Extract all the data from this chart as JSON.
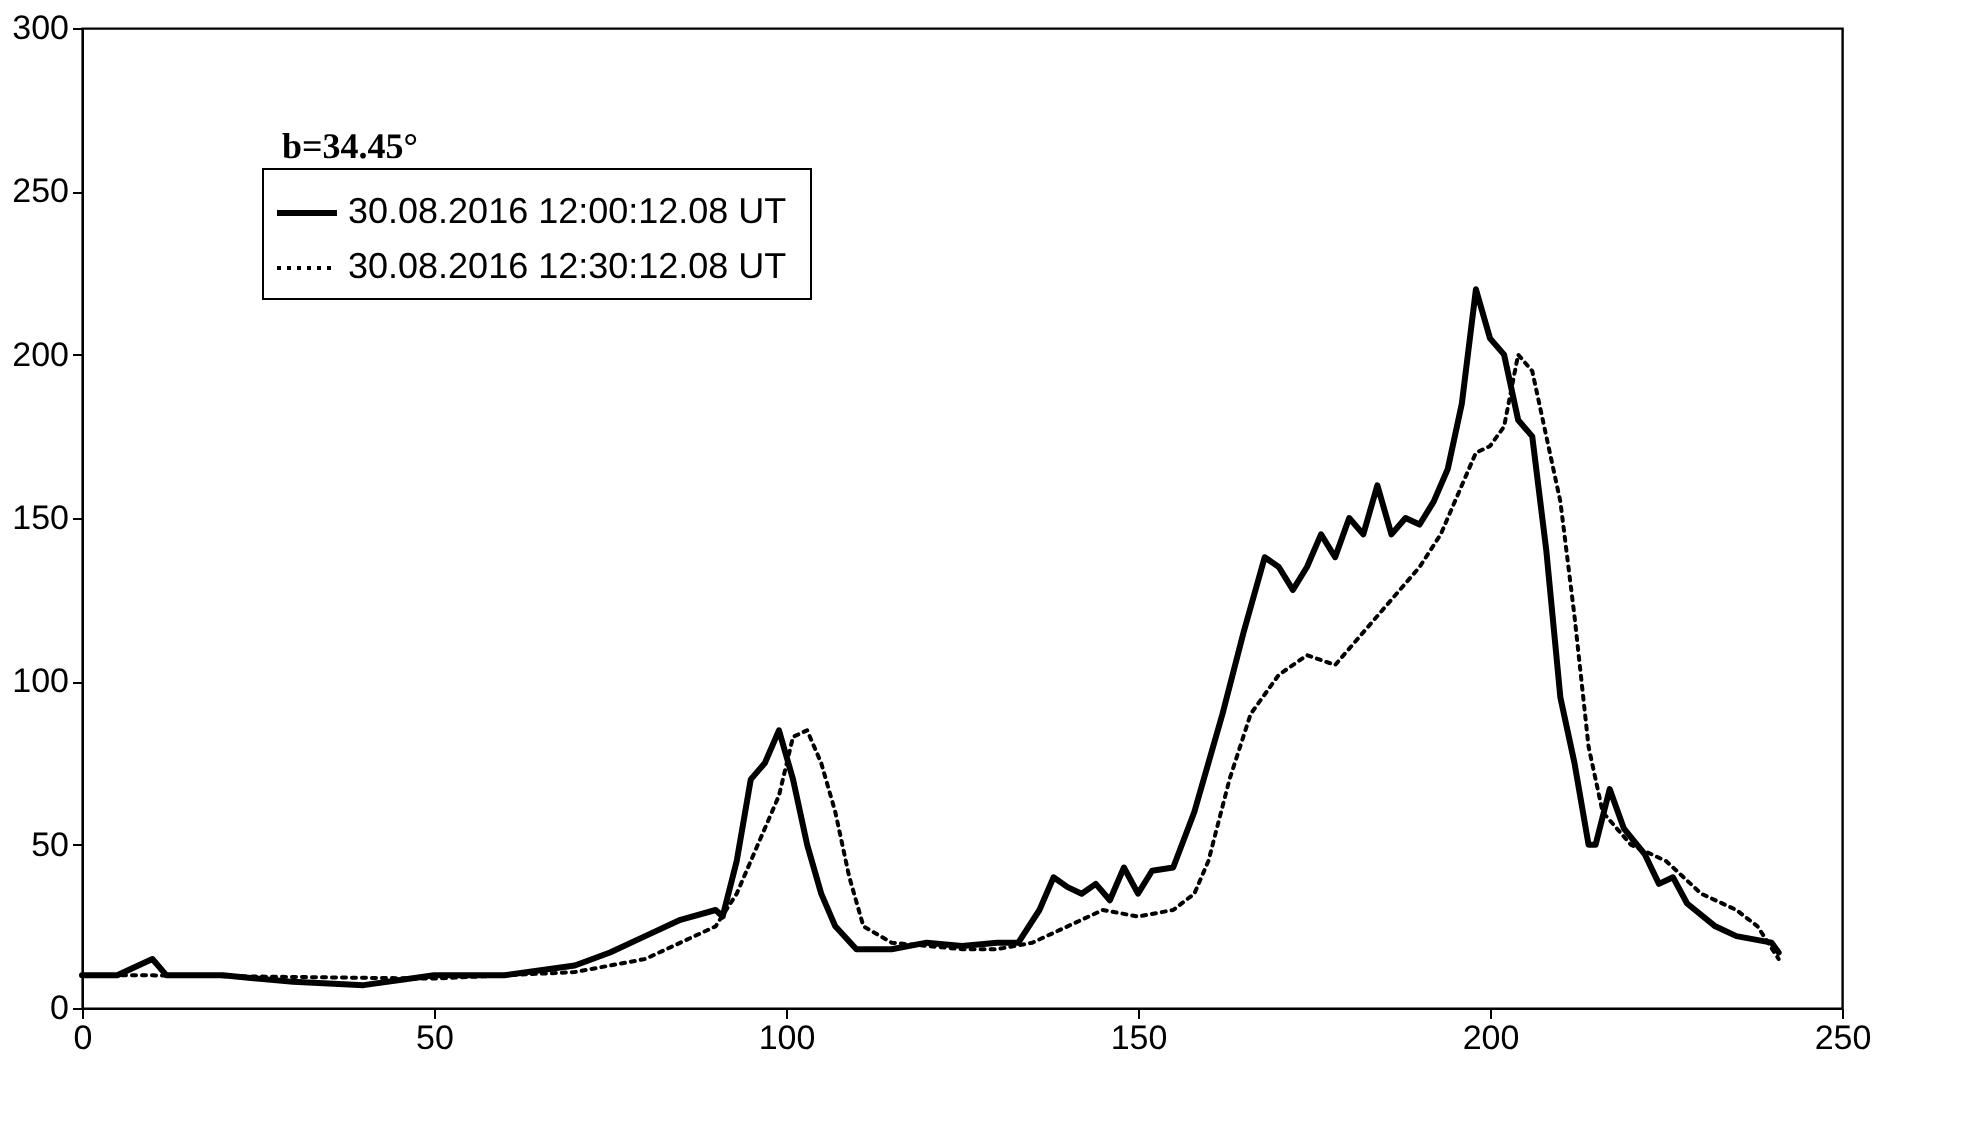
{
  "chart_data": {
    "type": "line",
    "xlim": [
      0,
      250
    ],
    "ylim": [
      0,
      300
    ],
    "xticks": [
      0,
      50,
      100,
      150,
      200,
      250
    ],
    "yticks": [
      0,
      50,
      100,
      150,
      200,
      250,
      300
    ],
    "grid": false,
    "legend": "top left",
    "annotations": [
      "b=34.45°"
    ],
    "series": [
      {
        "name": "30.08.2016  12:00:12.08 UT",
        "color": "#000000",
        "line_style": "solid",
        "x": [
          0,
          5,
          10,
          12,
          20,
          30,
          40,
          50,
          60,
          70,
          75,
          80,
          85,
          90,
          91,
          93,
          95,
          97,
          99,
          101,
          103,
          105,
          107,
          110,
          115,
          120,
          125,
          130,
          133,
          136,
          138,
          140,
          142,
          144,
          146,
          148,
          150,
          152,
          155,
          158,
          162,
          165,
          168,
          170,
          172,
          174,
          176,
          178,
          180,
          182,
          184,
          186,
          188,
          190,
          192,
          194,
          196,
          198,
          200,
          202,
          204,
          206,
          208,
          210,
          212,
          214,
          215,
          217,
          219,
          222,
          224,
          226,
          228,
          232,
          235,
          240,
          241
        ],
        "values": [
          10,
          10,
          15,
          10,
          10,
          8,
          7,
          10,
          10,
          13,
          17,
          22,
          27,
          30,
          28,
          45,
          70,
          75,
          85,
          70,
          50,
          35,
          25,
          18,
          18,
          20,
          19,
          20,
          20,
          30,
          40,
          37,
          35,
          38,
          33,
          43,
          35,
          42,
          43,
          60,
          90,
          115,
          138,
          135,
          128,
          135,
          145,
          138,
          150,
          145,
          160,
          145,
          150,
          148,
          155,
          165,
          185,
          220,
          205,
          200,
          180,
          175,
          140,
          95,
          75,
          50,
          50,
          67,
          55,
          47,
          38,
          40,
          32,
          25,
          22,
          20,
          17
        ]
      },
      {
        "name": "30.08.2016  12:30:12.08 UT",
        "color": "#000000",
        "line_style": "dotted",
        "x": [
          0,
          10,
          50,
          70,
          75,
          80,
          85,
          90,
          93,
          95,
          97,
          99,
          101,
          103,
          105,
          107,
          109,
          111,
          115,
          125,
          130,
          135,
          140,
          145,
          150,
          155,
          158,
          160,
          163,
          166,
          170,
          174,
          178,
          182,
          186,
          190,
          193,
          196,
          198,
          200,
          202,
          204,
          206,
          208,
          210,
          212,
          214,
          216,
          220,
          225,
          230,
          235,
          238,
          241
        ],
        "values": [
          10,
          10,
          9,
          11,
          13,
          15,
          20,
          25,
          35,
          45,
          55,
          65,
          83,
          85,
          75,
          60,
          40,
          25,
          20,
          18,
          18,
          20,
          25,
          30,
          28,
          30,
          35,
          45,
          70,
          90,
          102,
          108,
          105,
          115,
          125,
          135,
          145,
          160,
          170,
          172,
          178,
          200,
          195,
          175,
          155,
          120,
          80,
          60,
          50,
          45,
          35,
          30,
          25,
          15
        ]
      }
    ]
  }
}
